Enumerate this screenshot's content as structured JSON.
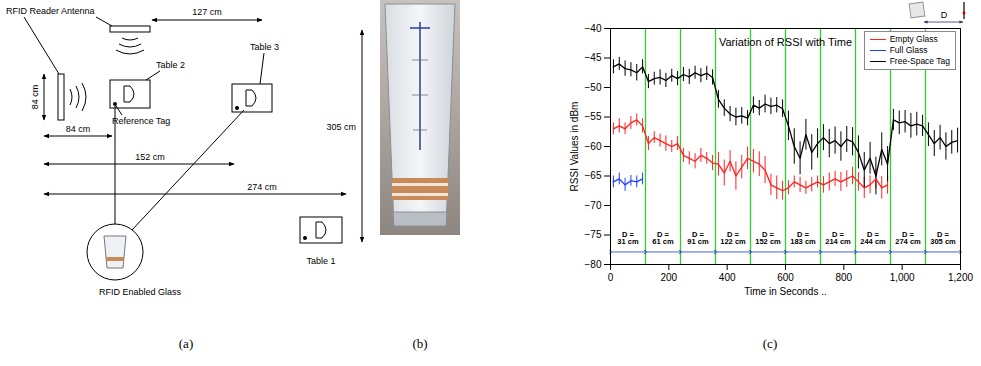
{
  "panel_labels": [
    "(a)",
    "(b)",
    "(c)"
  ],
  "diagram": {
    "antenna_label": "RFID Reader Antenna",
    "table_labels": [
      "Table 1",
      "Table 2",
      "Table 3"
    ],
    "reference_tag": "Reference Tag",
    "glass": "RFID Enabled Glass",
    "dimensions": {
      "antenna_gap": "127 cm",
      "antenna_height": "84 cm",
      "table2": "84 cm",
      "table3": "152 cm",
      "table1": "274 cm",
      "depth": "305 cm"
    }
  },
  "chart_data": {
    "type": "line",
    "title": "Variation of RSSI with Time",
    "x_label": "Time in Seconds ..",
    "y_label": "RSSI Values in dBm",
    "xlim": [
      0,
      1200
    ],
    "xticks": [
      0,
      200,
      400,
      600,
      800,
      1000,
      1200
    ],
    "ylim": [
      -80,
      -40
    ],
    "yticks": [
      -80,
      -75,
      -70,
      -65,
      -60,
      -55,
      -50,
      -45,
      -40
    ],
    "grid": false,
    "legend": "top-right",
    "inset_label": "D",
    "series": [
      {
        "name": "Empty Glass",
        "color": "#ff2020",
        "x": [
          10,
          30,
          50,
          70,
          90,
          110,
          130,
          150,
          170,
          190,
          210,
          230,
          250,
          270,
          290,
          310,
          330,
          350,
          370,
          390,
          410,
          430,
          450,
          470,
          490,
          510,
          530,
          550,
          570,
          590,
          610,
          630,
          650,
          670,
          690,
          710,
          730,
          750,
          770,
          790,
          810,
          830,
          850,
          870,
          890,
          910,
          930,
          950
        ],
        "values": [
          -57,
          -56.5,
          -57,
          -56,
          -55.5,
          -56.5,
          -59.5,
          -58.5,
          -59,
          -59.5,
          -60,
          -59.5,
          -61.5,
          -62,
          -62.5,
          -61.5,
          -62,
          -62.8,
          -63,
          -64.5,
          -62.5,
          -65,
          -63.5,
          -62,
          -62.5,
          -63,
          -64,
          -66.5,
          -67,
          -67.5,
          -67,
          -66,
          -66.5,
          -67,
          -66.5,
          -66,
          -66.5,
          -66,
          -65.5,
          -66,
          -65.5,
          -65,
          -66,
          -67,
          -66.5,
          -65.5,
          -67,
          -66.5
        ],
        "errors": [
          1,
          1.2,
          1,
          1.1,
          1,
          1.2,
          1.2,
          1,
          1.1,
          1.3,
          1,
          1.2,
          1.2,
          1.1,
          1.3,
          1.2,
          1,
          1.3,
          2,
          2.2,
          1.8,
          2.4,
          2,
          1.9,
          2,
          2.1,
          2.3,
          1.8,
          2,
          1.6,
          1.2,
          1,
          1.3,
          1.1,
          1.2,
          1,
          1.4,
          1.5,
          1.3,
          1.6,
          1.4,
          1.5,
          1.6,
          1.8,
          1.5,
          1.7,
          1.9,
          1.6
        ]
      },
      {
        "name": "Full Glass",
        "color": "#1f3fff",
        "x": [
          10,
          30,
          50,
          70,
          90,
          110
        ],
        "values": [
          -66,
          -65.5,
          -66.5,
          -65.8,
          -66,
          -65.5
        ],
        "errors": [
          1,
          1,
          1.1,
          0.9,
          1,
          1
        ]
      },
      {
        "name": "Free-Space Tag",
        "color": "#000000",
        "x": [
          10,
          30,
          50,
          70,
          90,
          110,
          130,
          150,
          170,
          190,
          210,
          230,
          250,
          270,
          290,
          310,
          330,
          350,
          370,
          390,
          410,
          430,
          450,
          470,
          490,
          510,
          530,
          550,
          570,
          590,
          610,
          630,
          650,
          670,
          690,
          710,
          730,
          750,
          770,
          790,
          810,
          830,
          850,
          870,
          890,
          910,
          930,
          950,
          970,
          990,
          1010,
          1030,
          1050,
          1070,
          1090,
          1110,
          1130,
          1150,
          1170,
          1190
        ],
        "values": [
          -46.5,
          -46,
          -46.8,
          -47,
          -47.5,
          -46.5,
          -49,
          -48.5,
          -48.3,
          -48.8,
          -48,
          -48.5,
          -47.8,
          -48.2,
          -47.5,
          -48,
          -47.6,
          -48.3,
          -52,
          -53.5,
          -54.5,
          -55,
          -54.8,
          -55.2,
          -53,
          -53.5,
          -52.8,
          -53.2,
          -53,
          -53.6,
          -56.5,
          -60,
          -62,
          -58,
          -61,
          -59.5,
          -58.5,
          -59.5,
          -59,
          -60,
          -58.8,
          -59.2,
          -61,
          -64,
          -62,
          -65,
          -60.5,
          -63,
          -55.5,
          -56,
          -55.8,
          -56.5,
          -56.2,
          -56.5,
          -58,
          -59.5,
          -58.5,
          -60,
          -59.3,
          -59
        ],
        "errors": [
          1.2,
          1.1,
          1.3,
          1.2,
          1.4,
          1.2,
          1.2,
          1.1,
          1.3,
          1.2,
          1.1,
          1.2,
          1.2,
          1.3,
          1.1,
          1.2,
          1.2,
          1.3,
          1.5,
          1.4,
          1.3,
          1.5,
          1.4,
          1.3,
          1.4,
          1.3,
          1.5,
          1.4,
          1.3,
          1.5,
          2.5,
          3,
          2.8,
          2.6,
          3,
          2.5,
          2.2,
          2.4,
          2.3,
          2.5,
          2.2,
          2.4,
          2.8,
          3,
          2.7,
          3.2,
          2.8,
          3,
          1.8,
          2,
          1.9,
          2.1,
          2,
          1.8,
          2,
          2.2,
          2.1,
          2.3,
          2,
          2.1
        ]
      }
    ],
    "boundaries": {
      "x": [
        120,
        240,
        360,
        480,
        600,
        720,
        840,
        960,
        1080
      ],
      "color": "#33cc33"
    },
    "segment_label_y": -75.5,
    "segments": [
      {
        "label": "D = 31 cm",
        "x1": 0,
        "x2": 120
      },
      {
        "label": "D = 61 cm",
        "x1": 120,
        "x2": 240
      },
      {
        "label": "D = 91 cm",
        "x1": 240,
        "x2": 360
      },
      {
        "label": "D = 122 cm",
        "x1": 360,
        "x2": 480
      },
      {
        "label": "D = 152 cm",
        "x1": 480,
        "x2": 600
      },
      {
        "label": "D = 183 cm",
        "x1": 600,
        "x2": 720
      },
      {
        "label": "D = 214 cm",
        "x1": 720,
        "x2": 840
      },
      {
        "label": "D = 244 cm",
        "x1": 840,
        "x2": 960
      },
      {
        "label": "D = 274 cm",
        "x1": 960,
        "x2": 1080
      },
      {
        "label": "D = 305 cm",
        "x1": 1080,
        "x2": 1200
      }
    ]
  }
}
